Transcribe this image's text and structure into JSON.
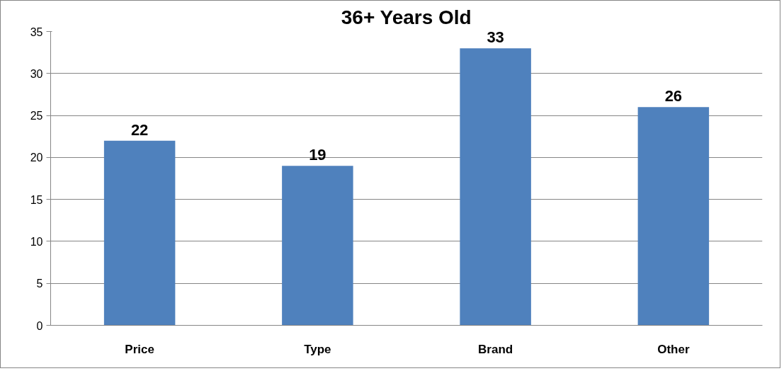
{
  "chart_data": {
    "type": "bar",
    "title": "36+ Years Old",
    "categories": [
      "Price",
      "Type",
      "Brand",
      "Other"
    ],
    "values": [
      22,
      19,
      33,
      26
    ],
    "color": "#4f81bd",
    "ylim": [
      0,
      35
    ],
    "yticks": [
      0,
      5,
      10,
      15,
      20,
      25,
      30,
      35
    ],
    "grid": "y",
    "data_labels": true
  }
}
